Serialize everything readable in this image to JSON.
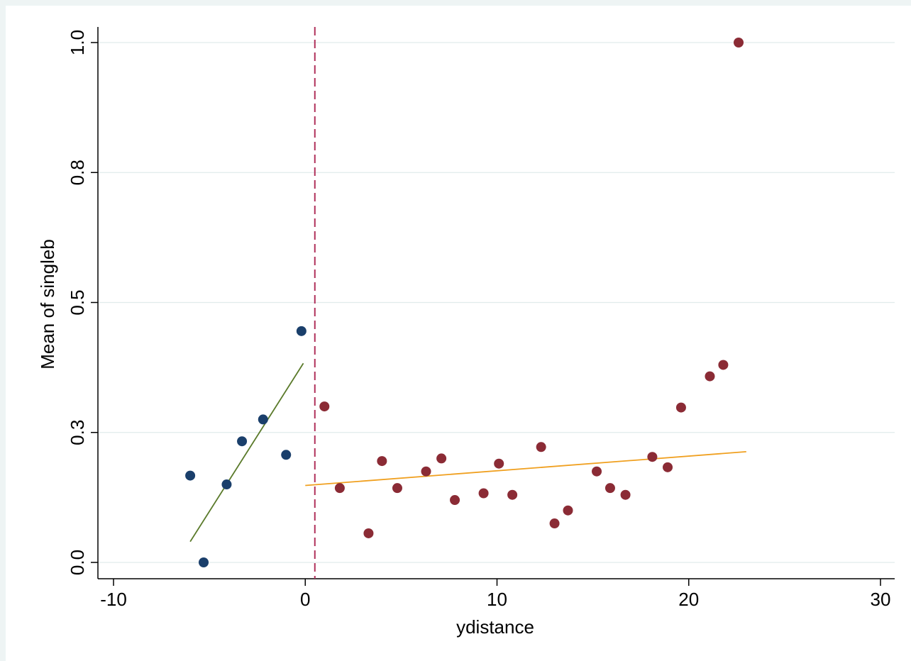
{
  "chart_data": {
    "type": "scatter",
    "title": "",
    "xlabel": "ydistance",
    "ylabel": "Mean of singleb",
    "xlim": [
      -10,
      30
    ],
    "ylim": [
      0,
      1
    ],
    "x_ticks": [
      -10,
      0,
      10,
      20,
      30
    ],
    "y_ticks": [
      0.0,
      0.25,
      0.5,
      0.75,
      1.0
    ],
    "y_tick_labels": [
      "0.0",
      "0.3",
      "0.5",
      "0.8",
      "1.0"
    ],
    "grid": "horizontal",
    "cutoff_line": {
      "x": 0.5,
      "style": "dashed",
      "color": "#b0305a"
    },
    "series": [
      {
        "color": "#1a3f6b",
        "points": [
          {
            "x": -6,
            "y": 0.167
          },
          {
            "x": -5.3,
            "y": 0.0
          },
          {
            "x": -4.1,
            "y": 0.15
          },
          {
            "x": -3.3,
            "y": 0.233
          },
          {
            "x": -2.2,
            "y": 0.275
          },
          {
            "x": -1.0,
            "y": 0.207
          },
          {
            "x": -0.2,
            "y": 0.445
          }
        ],
        "fit_line": {
          "x": [
            -6,
            -0.1
          ],
          "y": [
            0.04,
            0.383
          ],
          "color": "#5a7a2a"
        }
      },
      {
        "color": "#8b2b35",
        "points": [
          {
            "x": 1.0,
            "y": 0.3
          },
          {
            "x": 1.8,
            "y": 0.143
          },
          {
            "x": 3.3,
            "y": 0.056
          },
          {
            "x": 4.0,
            "y": 0.195
          },
          {
            "x": 4.8,
            "y": 0.143
          },
          {
            "x": 6.3,
            "y": 0.175
          },
          {
            "x": 7.1,
            "y": 0.2
          },
          {
            "x": 7.8,
            "y": 0.12
          },
          {
            "x": 9.3,
            "y": 0.133
          },
          {
            "x": 10.1,
            "y": 0.19
          },
          {
            "x": 10.8,
            "y": 0.13
          },
          {
            "x": 12.3,
            "y": 0.222
          },
          {
            "x": 13.0,
            "y": 0.075
          },
          {
            "x": 13.7,
            "y": 0.1
          },
          {
            "x": 15.2,
            "y": 0.175
          },
          {
            "x": 15.9,
            "y": 0.143
          },
          {
            "x": 16.7,
            "y": 0.13
          },
          {
            "x": 18.1,
            "y": 0.203
          },
          {
            "x": 18.9,
            "y": 0.183
          },
          {
            "x": 19.6,
            "y": 0.298
          },
          {
            "x": 21.1,
            "y": 0.358
          },
          {
            "x": 21.8,
            "y": 0.38
          },
          {
            "x": 22.6,
            "y": 1.0
          }
        ],
        "fit_line": {
          "x": [
            0,
            23
          ],
          "y": [
            0.148,
            0.213
          ],
          "color": "#f0a020"
        }
      }
    ]
  }
}
